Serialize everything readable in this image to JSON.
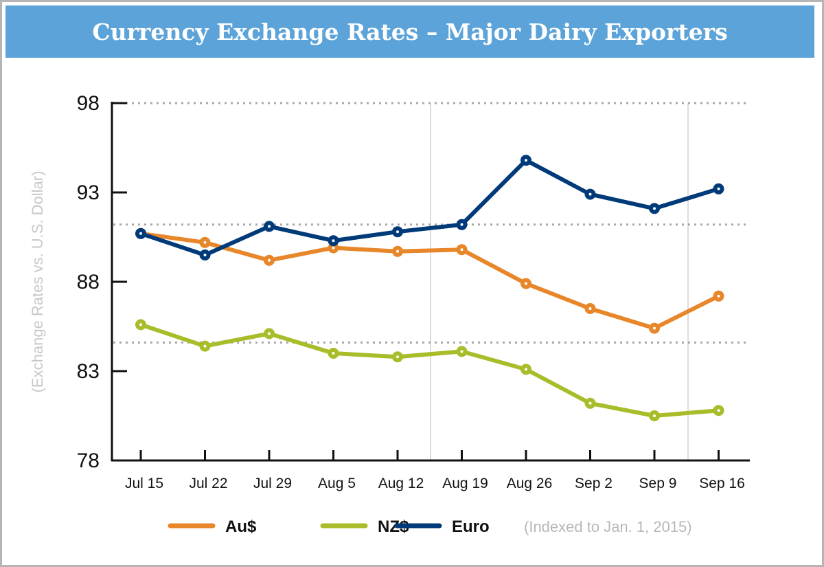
{
  "chart_data": {
    "type": "line",
    "title": "Currency Exchange Rates – Major Dairy Exporters",
    "ylabel": "(Exchange Rates vs. U.S. Dollar)",
    "xlabel": "",
    "note": "(Indexed to Jan. 1, 2015)",
    "categories": [
      "Jul 15",
      "Jul 22",
      "Jul 29",
      "Aug 5",
      "Aug 12",
      "Aug 19",
      "Aug 26",
      "Sep 2",
      "Sep 9",
      "Sep 16"
    ],
    "yticks": [
      "78",
      "83",
      "88",
      "93",
      "98"
    ],
    "ylim": [
      78,
      98
    ],
    "dotted_grid_at": [
      98,
      91.2,
      84.6
    ],
    "legend_position": "bottom",
    "series": [
      {
        "name": "Au$",
        "color": "#e8862a",
        "values": [
          90.7,
          90.2,
          89.2,
          89.9,
          89.7,
          89.8,
          87.9,
          86.5,
          85.4,
          87.2
        ]
      },
      {
        "name": "NZ$",
        "color": "#a9bd2b",
        "values": [
          85.6,
          84.4,
          85.1,
          84.0,
          83.8,
          84.1,
          83.1,
          81.2,
          80.5,
          80.8
        ]
      },
      {
        "name": "Euro",
        "color": "#003a78",
        "values": [
          90.7,
          89.5,
          91.1,
          90.3,
          90.8,
          91.2,
          94.8,
          92.9,
          92.1,
          93.2
        ]
      }
    ]
  }
}
